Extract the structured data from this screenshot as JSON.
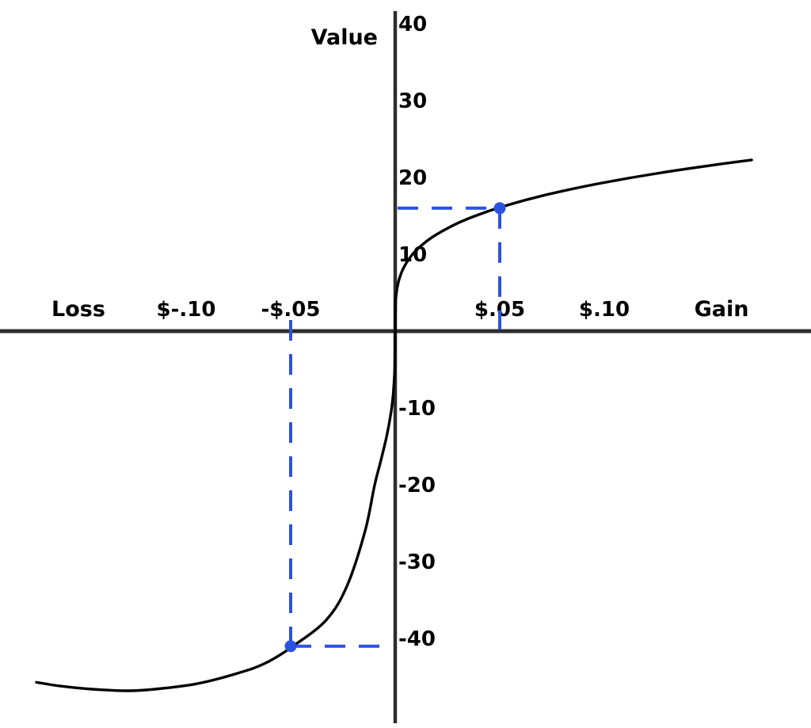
{
  "page": {
    "background": "#ffffff"
  },
  "chart_data": {
    "type": "line",
    "title": "",
    "description": "Prospect theory S-shaped value function: concave for gains, convex and steeper for losses",
    "ylabel": "Value",
    "x_axis_left_label": "Loss",
    "x_axis_right_label": "Gain",
    "grid": false,
    "legend": false,
    "xlim": [
      -0.19,
      0.2
    ],
    "ylim": [
      -51,
      42
    ],
    "axis_color": "#2d2d2d",
    "curve_color": "#000000",
    "accent_color": "#2B52E2",
    "x_ticks": [
      {
        "label": "$-.10",
        "x": -0.1
      },
      {
        "label": "-$.05",
        "x": -0.05
      },
      {
        "label": "$.05",
        "x": 0.05
      },
      {
        "label": "$.10",
        "x": 0.1
      }
    ],
    "y_ticks": [
      {
        "label": "40",
        "v": 40
      },
      {
        "label": "30",
        "v": 30
      },
      {
        "label": "20",
        "v": 20
      },
      {
        "label": "10",
        "v": 10
      },
      {
        "label": "-10",
        "v": -10
      },
      {
        "label": "-20",
        "v": -20
      },
      {
        "label": "-30",
        "v": -30
      },
      {
        "label": "-40",
        "v": -40
      }
    ],
    "series": [
      {
        "name": "gain-branch",
        "points": [
          [
            0,
            0
          ],
          [
            0.0002,
            3.73
          ],
          [
            0.0005,
            4.75
          ],
          [
            0.001,
            5.69
          ],
          [
            0.002,
            6.86
          ],
          [
            0.004,
            8.24
          ],
          [
            0.007,
            9.56
          ],
          [
            0.01,
            10.51
          ],
          [
            0.015,
            11.7
          ],
          [
            0.02,
            12.62
          ],
          [
            0.03,
            14.06
          ],
          [
            0.04,
            15.17
          ],
          [
            0.05,
            16.09
          ],
          [
            0.065,
            17.25
          ],
          [
            0.08,
            18.23
          ],
          [
            0.1,
            19.34
          ],
          [
            0.125,
            20.52
          ],
          [
            0.15,
            21.53
          ],
          [
            0.1705,
            22.28
          ]
        ]
      },
      {
        "name": "loss-branch",
        "points": [
          [
            0,
            0
          ],
          [
            -0.0002,
            -4.5
          ],
          [
            -0.0005,
            -6.4
          ],
          [
            -0.001,
            -8.3
          ],
          [
            -0.002,
            -10.6
          ],
          [
            -0.004,
            -13.6
          ],
          [
            -0.007,
            -17.0
          ],
          [
            -0.0099,
            -20.1
          ],
          [
            -0.0144,
            -26.0
          ],
          [
            -0.0231,
            -33.2
          ],
          [
            -0.033,
            -37.6
          ],
          [
            -0.0489,
            -41.0
          ],
          [
            -0.062,
            -43.2
          ],
          [
            -0.075,
            -44.5
          ],
          [
            -0.095,
            -45.9
          ],
          [
            -0.115,
            -46.6
          ],
          [
            -0.128,
            -46.8
          ],
          [
            -0.145,
            -46.6
          ],
          [
            -0.16,
            -46.2
          ],
          [
            -0.1716,
            -45.7
          ]
        ]
      }
    ],
    "highlight_points": [
      {
        "name": "gain-example-point",
        "x": 0.05,
        "value": 16,
        "guides": "dashed-to-both-axes"
      },
      {
        "name": "loss-example-point",
        "x": -0.05,
        "value": -41,
        "guides": "dashed-to-both-axes"
      }
    ]
  }
}
